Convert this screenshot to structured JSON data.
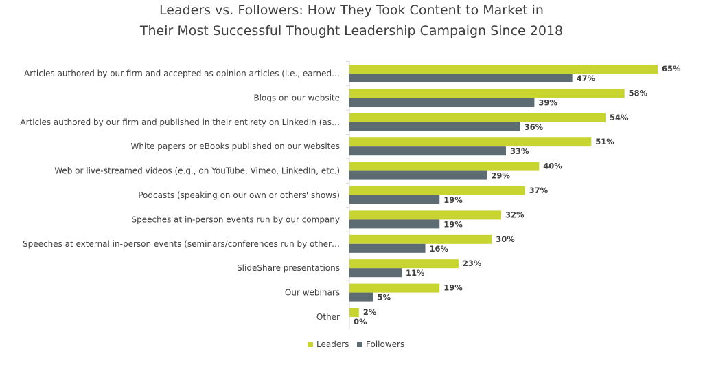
{
  "chart_data": {
    "type": "bar",
    "orientation": "horizontal",
    "title_lines": [
      "Leaders vs. Followers: How They Took Content to Market in",
      "Their Most Successful Thought Leadership Campaign Since 2018"
    ],
    "categories": [
      "Articles authored by our firm and accepted as opinion articles (i.e., earned…",
      "Blogs on our website",
      "Articles authored by our firm and published in their entirety on LinkedIn (as…",
      "White papers or eBooks published on our websites",
      "Web or live-streamed videos (e.g., on YouTube, Vimeo, LinkedIn, etc.)",
      "Podcasts (speaking on our own or others' shows)",
      "Speeches at in-person events run by our company",
      "Speeches at external in-person events (seminars/conferences run by other…",
      "SlideShare presentations",
      "Our webinars",
      "Other"
    ],
    "series": [
      {
        "name": "Leaders",
        "color": "#c8d530",
        "values": [
          65,
          58,
          54,
          51,
          40,
          37,
          32,
          30,
          23,
          19,
          2
        ],
        "labels": [
          "65%",
          "58%",
          "54%",
          "51%",
          "40%",
          "37%",
          "32%",
          "30%",
          "23%",
          "19%",
          "2%"
        ]
      },
      {
        "name": "Followers",
        "color": "#5d6b72",
        "values": [
          47,
          39,
          36,
          33,
          29,
          19,
          19,
          16,
          11,
          5,
          0
        ],
        "labels": [
          "47%",
          "39%",
          "36%",
          "33%",
          "29%",
          "19%",
          "19%",
          "16%",
          "11%",
          "5%",
          "0%"
        ]
      }
    ],
    "xlim": [
      0,
      65
    ],
    "grid": false,
    "legend_position": "bottom-center",
    "axis_line_color": "#d9d9d9"
  }
}
